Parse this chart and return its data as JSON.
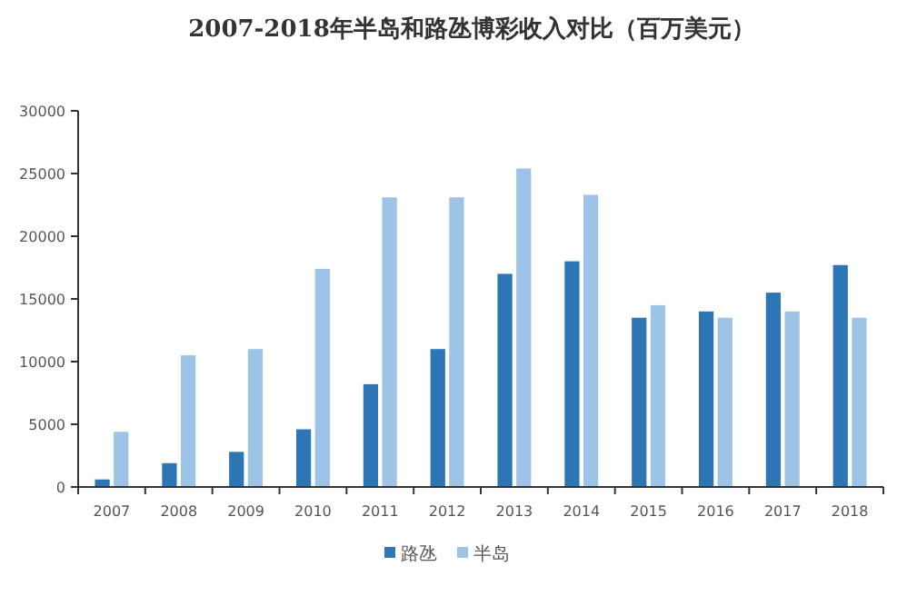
{
  "chart_data": {
    "type": "bar",
    "title": "2007-2018年半岛和路氹博彩收入对比（百万美元）",
    "categories": [
      "2007",
      "2008",
      "2009",
      "2010",
      "2011",
      "2012",
      "2013",
      "2014",
      "2015",
      "2016",
      "2017",
      "2018"
    ],
    "series": [
      {
        "name": "路氹",
        "color": "#2e75b6",
        "values": [
          600,
          1900,
          2800,
          4600,
          8200,
          11000,
          17000,
          18000,
          13500,
          14000,
          15500,
          17700
        ]
      },
      {
        "name": "半岛",
        "color": "#9dc3e6",
        "values": [
          4400,
          10500,
          11000,
          17400,
          23100,
          23100,
          25400,
          23300,
          14500,
          13500,
          14000,
          13500
        ]
      }
    ],
    "ylim": [
      0,
      30000
    ],
    "yticks": [
      0,
      5000,
      10000,
      15000,
      20000,
      25000,
      30000
    ],
    "grid": false,
    "legend": "bottom"
  }
}
